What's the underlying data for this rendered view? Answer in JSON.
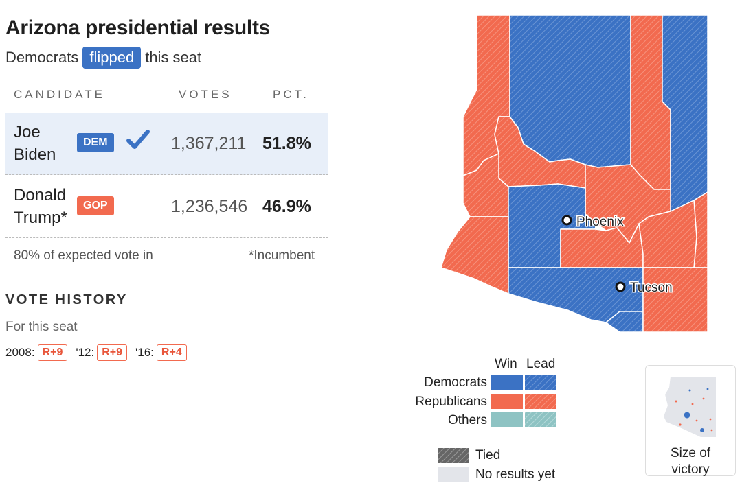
{
  "header": {
    "title": "Arizona presidential results",
    "subtitle_pre": "Democrats",
    "subtitle_badge": "flipped",
    "subtitle_post": "this seat"
  },
  "table": {
    "columns": [
      "CANDIDATE",
      "VOTES",
      "PCT."
    ],
    "rows": [
      {
        "first": "Joe",
        "last": "Biden",
        "party": "DEM",
        "votes": "1,367,211",
        "pct": "51.8%",
        "winner": true
      },
      {
        "first": "Donald",
        "last": "Trump*",
        "party": "GOP",
        "votes": "1,236,546",
        "pct": "46.9%",
        "winner": false
      }
    ],
    "reporting": "80% of expected vote in",
    "note": "*Incumbent"
  },
  "history": {
    "title": "VOTE HISTORY",
    "subtitle": "For this seat",
    "items": [
      {
        "year": "2008:",
        "margin": "R+9"
      },
      {
        "year": "'12:",
        "margin": "R+9"
      },
      {
        "year": "'16:",
        "margin": "R+4"
      }
    ]
  },
  "map": {
    "cities": [
      "Phoenix",
      "Tucson"
    ]
  },
  "legend": {
    "col_win": "Win",
    "col_lead": "Lead",
    "rows": [
      "Democrats",
      "Republicans",
      "Others"
    ],
    "tied": "Tied",
    "no_results": "No results yet",
    "colors": {
      "dem": "#3b72c4",
      "rep": "#f26a4f",
      "other": "#8ec3c3",
      "tied": "#666666",
      "none": "#e3e5ea"
    }
  },
  "size_toggle": {
    "line1": "Size of",
    "line2": "victory"
  }
}
